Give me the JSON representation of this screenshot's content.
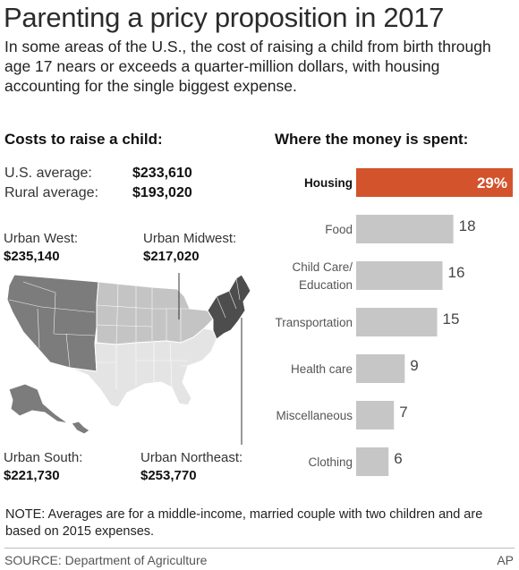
{
  "title": "Parenting a pricy proposition in 2017",
  "subtitle": "In some areas of the U.S., the cost of raising a child from birth through age 17 nears or exceeds a quarter-million dollars, with housing accounting for the single biggest expense.",
  "left_header": "Costs to raise a child:",
  "right_header": "Where the money is spent:",
  "averages": [
    {
      "label": "U.S. average:",
      "value": "$233,610"
    },
    {
      "label": "Rural average:",
      "value": "$193,020"
    }
  ],
  "regions": {
    "west": {
      "label": "Urban West:",
      "value": "$235,140",
      "color": "#7c7c7c"
    },
    "midwest": {
      "label": "Urban Midwest:",
      "value": "$217,020",
      "color": "#c4c4c4"
    },
    "south": {
      "label": "Urban South:",
      "value": "$221,730",
      "color": "#e4e4e4"
    },
    "northeast": {
      "label": "Urban Northeast:",
      "value": "$253,770",
      "color": "#4d4d4d"
    }
  },
  "colors": {
    "highlight_bar": "#d2532c",
    "bar": "#c6c6c6",
    "highlight_text": "#ffffff",
    "value_text": "#444444"
  },
  "chart_data": {
    "type": "bar",
    "orientation": "horizontal",
    "title": "Where the money is spent:",
    "unit": "%",
    "categories": [
      "Housing",
      "Food",
      "Child Care/\nEducation",
      "Transportation",
      "Health care",
      "Miscellaneous",
      "Clothing"
    ],
    "values": [
      29,
      18,
      16,
      15,
      9,
      7,
      6
    ],
    "value_labels": [
      "29%",
      "18",
      "16",
      "15",
      "9",
      "7",
      "6"
    ],
    "highlight_index": 0,
    "xlim": [
      0,
      29
    ],
    "grid": false,
    "legend": "none"
  },
  "note": "NOTE: Averages are for a middle-income, married couple with two children and are based on 2015 expenses.",
  "source": "SOURCE: Department of Agriculture",
  "credit": "AP"
}
